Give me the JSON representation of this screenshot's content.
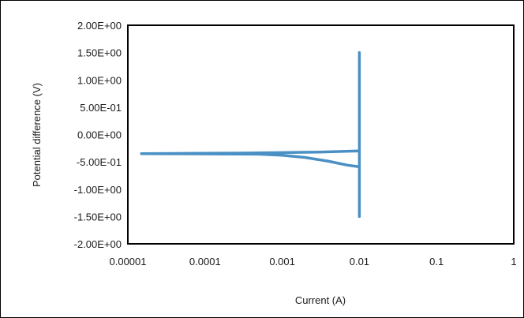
{
  "chart_data": {
    "type": "line",
    "title": "",
    "xlabel": "Current (A)",
    "ylabel": "Potential difference (V)",
    "x_scale": "log",
    "xlim": [
      1e-05,
      1
    ],
    "ylim": [
      -2.0,
      2.0
    ],
    "x_ticks": [
      1e-05,
      0.0001,
      0.001,
      0.01,
      0.1,
      1
    ],
    "x_tick_labels": [
      "0.00001",
      "0.0001",
      "0.001",
      "0.01",
      "0.1",
      "1"
    ],
    "y_ticks": [
      2.0,
      1.5,
      1.0,
      0.5,
      0.0,
      -0.5,
      -1.0,
      -1.5,
      -2.0
    ],
    "y_tick_labels": [
      "2.00E+00",
      "1.50E+00",
      "1.00E+00",
      "5.00E-01",
      "0.00E+00",
      "-5.00E-01",
      "-1.00E+00",
      "-1.50E+00",
      "-2.00E+00"
    ],
    "grid": false,
    "legend": "none",
    "series": [
      {
        "color": "#4a90c4",
        "points": [
          [
            1.5e-05,
            -0.35
          ],
          [
            0.0005,
            -0.36
          ],
          [
            0.001,
            -0.38
          ],
          [
            0.002,
            -0.42
          ],
          [
            0.004,
            -0.49
          ],
          [
            0.007,
            -0.56
          ],
          [
            0.01,
            -0.59
          ],
          [
            0.01,
            -1.5
          ],
          [
            0.01,
            1.5
          ],
          [
            0.01,
            -0.3
          ],
          [
            0.003,
            -0.32
          ],
          [
            0.001,
            -0.33
          ],
          [
            0.0003,
            -0.34
          ],
          [
            1.5e-05,
            -0.35
          ]
        ]
      }
    ]
  }
}
